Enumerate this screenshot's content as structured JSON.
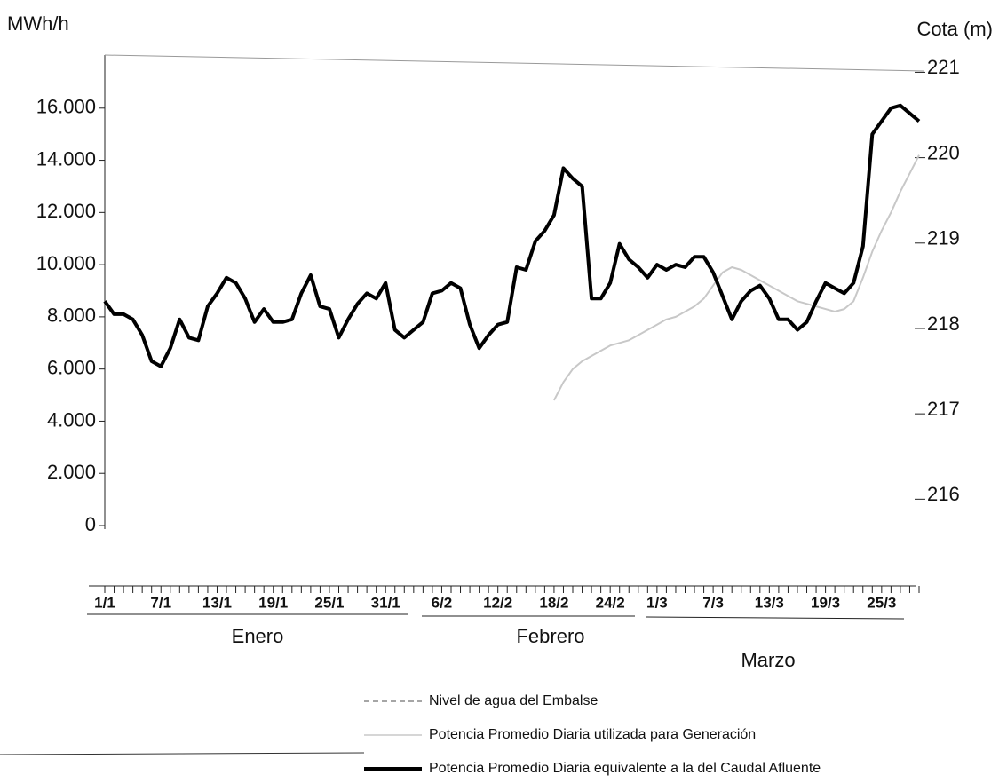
{
  "chart_data": {
    "type": "line",
    "y_label": "MWh/h",
    "y2_label": "Cota (m)",
    "categories": [
      "1/1",
      null,
      null,
      null,
      null,
      null,
      "7/1",
      null,
      null,
      null,
      null,
      null,
      "13/1",
      null,
      null,
      null,
      null,
      null,
      "19/1",
      null,
      null,
      null,
      null,
      null,
      "25/1",
      null,
      null,
      null,
      null,
      null,
      "31/1",
      null,
      null,
      null,
      null,
      null,
      "6/2",
      null,
      null,
      null,
      null,
      null,
      "12/2",
      null,
      null,
      null,
      null,
      null,
      "18/2",
      null,
      null,
      null,
      null,
      null,
      "24/2",
      null,
      null,
      null,
      null,
      "1/3",
      null,
      null,
      null,
      null,
      null,
      "7/3",
      null,
      null,
      null,
      null,
      null,
      "13/3",
      null,
      null,
      null,
      null,
      null,
      "19/3",
      null,
      null,
      null,
      null,
      null,
      "25/3",
      null,
      null,
      null,
      null
    ],
    "months": [
      "Enero",
      "Febrero",
      "Marzo"
    ],
    "ylim": [
      0,
      18000
    ],
    "yticks": [
      0,
      {
        "value": 2000,
        "label": "2.000"
      },
      {
        "value": 4000,
        "label": "4.000"
      },
      {
        "value": 6000,
        "label": "6.000"
      },
      {
        "value": 8000,
        "label": "8.000"
      },
      {
        "value": 10000,
        "label": "10.000"
      },
      {
        "value": 12000,
        "label": "12.000"
      },
      {
        "value": 14000,
        "label": "14.000"
      },
      {
        "value": 16000,
        "label": "16.000"
      }
    ],
    "y2lim": [
      215.65,
      221.15
    ],
    "y2ticks": [
      216,
      217,
      218,
      219,
      220,
      221
    ],
    "series": [
      {
        "name": "Nivel de agua  del Embalse",
        "color": "#888888",
        "axis": "y2",
        "dash": true,
        "values": [
          null,
          null,
          null,
          null,
          null,
          null,
          null,
          null,
          null,
          null,
          null,
          null,
          null,
          null,
          null,
          null,
          null,
          null,
          null,
          null,
          null,
          null,
          null,
          null,
          null,
          null,
          null,
          null,
          null,
          null,
          null,
          null,
          null,
          null,
          null,
          null,
          null,
          null,
          null,
          null,
          null,
          null,
          null,
          null,
          null,
          null,
          null,
          null,
          null,
          null,
          null,
          null,
          null,
          null,
          null,
          null,
          null,
          null,
          null,
          null,
          null,
          null,
          null,
          null,
          null,
          null,
          null,
          null,
          null,
          null,
          null,
          null,
          null,
          null,
          null,
          null,
          null,
          null,
          null,
          null,
          null,
          null,
          null,
          null,
          null,
          null,
          null,
          null
        ]
      },
      {
        "name": "Potencia Promedio Diaria utilizada para Generación",
        "color": "#c8c8c8",
        "values": [
          null,
          null,
          null,
          null,
          null,
          null,
          null,
          null,
          null,
          null,
          null,
          null,
          null,
          null,
          null,
          null,
          null,
          null,
          null,
          null,
          null,
          null,
          null,
          null,
          null,
          null,
          null,
          null,
          null,
          null,
          null,
          null,
          null,
          null,
          null,
          null,
          null,
          null,
          null,
          null,
          null,
          null,
          null,
          null,
          null,
          null,
          null,
          null,
          4800,
          5500,
          6000,
          6300,
          6500,
          6700,
          6900,
          7000,
          7100,
          7300,
          7500,
          7700,
          7900,
          8000,
          8200,
          8400,
          8700,
          9200,
          9700,
          9900,
          9800,
          9600,
          9400,
          9200,
          9000,
          8800,
          8600,
          8500,
          8400,
          8300,
          8200,
          8300,
          8600,
          9500,
          10500,
          11300,
          12000,
          12800,
          13500,
          14200
        ]
      },
      {
        "name": "Potencia Promedio Diaria equivalente a la del Caudal Afluente",
        "color": "#000000",
        "thick": true,
        "values": [
          8600,
          8100,
          8100,
          7900,
          7300,
          6300,
          6100,
          6800,
          7900,
          7200,
          7100,
          8400,
          8900,
          9500,
          9300,
          8700,
          7800,
          8300,
          7800,
          7800,
          7900,
          8900,
          9600,
          8400,
          8300,
          7200,
          7900,
          8500,
          8900,
          8700,
          9300,
          7500,
          7200,
          7500,
          7800,
          8900,
          9000,
          9300,
          9100,
          7700,
          6800,
          7300,
          7700,
          7800,
          9900,
          9800,
          10900,
          11300,
          11900,
          13700,
          13300,
          13000,
          8700,
          8700,
          9300,
          10800,
          10200,
          9900,
          9500,
          10000,
          9800,
          10000,
          9900,
          10300,
          10300,
          9700,
          8800,
          7900,
          8600,
          9000,
          9200,
          8700,
          7900,
          7900,
          7500,
          7800,
          8600,
          9300,
          9100,
          8900,
          9300,
          10700,
          15000,
          15500,
          16000,
          16100,
          15800,
          15500
        ]
      }
    ]
  }
}
